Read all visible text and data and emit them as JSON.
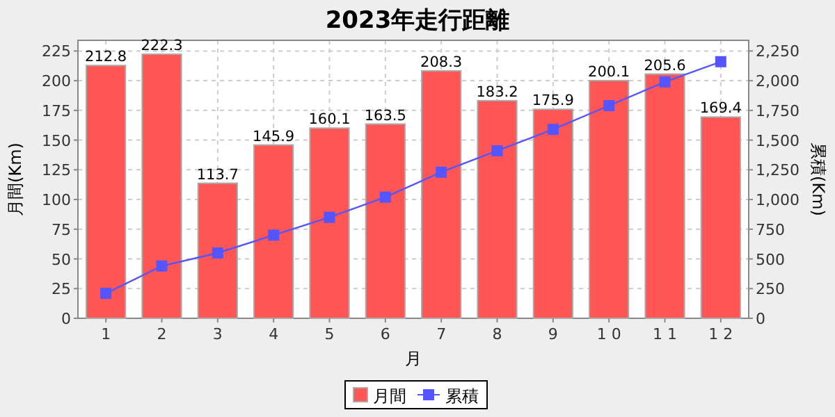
{
  "chart_data": {
    "type": "bar",
    "title": "2023年走行距離",
    "xlabel": "月",
    "ylabel": "月間(Km)",
    "y2label": "累積(Km)",
    "categories": [
      "1",
      "2",
      "3",
      "4",
      "5",
      "6",
      "7",
      "8",
      "9",
      "1 0",
      "1 1",
      "1 2"
    ],
    "series": [
      {
        "name": "月間",
        "color": "#ff5555",
        "values": [
          212.8,
          222.3,
          113.7,
          145.9,
          160.1,
          163.5,
          208.3,
          183.2,
          175.9,
          200.1,
          205.6,
          169.4
        ],
        "value_labels": [
          "212.8",
          "222.3",
          "113.7",
          "145.9",
          "160.1",
          "163.5",
          "208.3",
          "183.2",
          "175.9",
          "200.1",
          "205.6",
          "169.4"
        ]
      },
      {
        "name": "累積",
        "type": "line",
        "axis": "y2",
        "color": "#5555ff",
        "marker": "square",
        "values": [
          210,
          440,
          550,
          700,
          850,
          1020,
          1230,
          1410,
          1590,
          1790,
          1990,
          2160
        ]
      }
    ],
    "grid": true,
    "legend": "bottom",
    "ylim": [
      0,
      234
    ],
    "yticks": [
      0,
      25,
      50,
      75,
      100,
      125,
      150,
      175,
      200,
      225
    ],
    "y2lim": [
      0,
      2340
    ],
    "y2ticks": [
      0,
      {
        "value": 250,
        "label": "250"
      },
      {
        "value": 500,
        "label": "500"
      },
      {
        "value": 750,
        "label": "750"
      },
      {
        "value": 1000,
        "label": "1,000"
      },
      {
        "value": 1250,
        "label": "1,250"
      },
      {
        "value": 1500,
        "label": "1,500"
      },
      {
        "value": 1750,
        "label": "1,750"
      },
      {
        "value": 2000,
        "label": "2,000"
      },
      {
        "value": 2250,
        "label": "2,250"
      }
    ]
  }
}
